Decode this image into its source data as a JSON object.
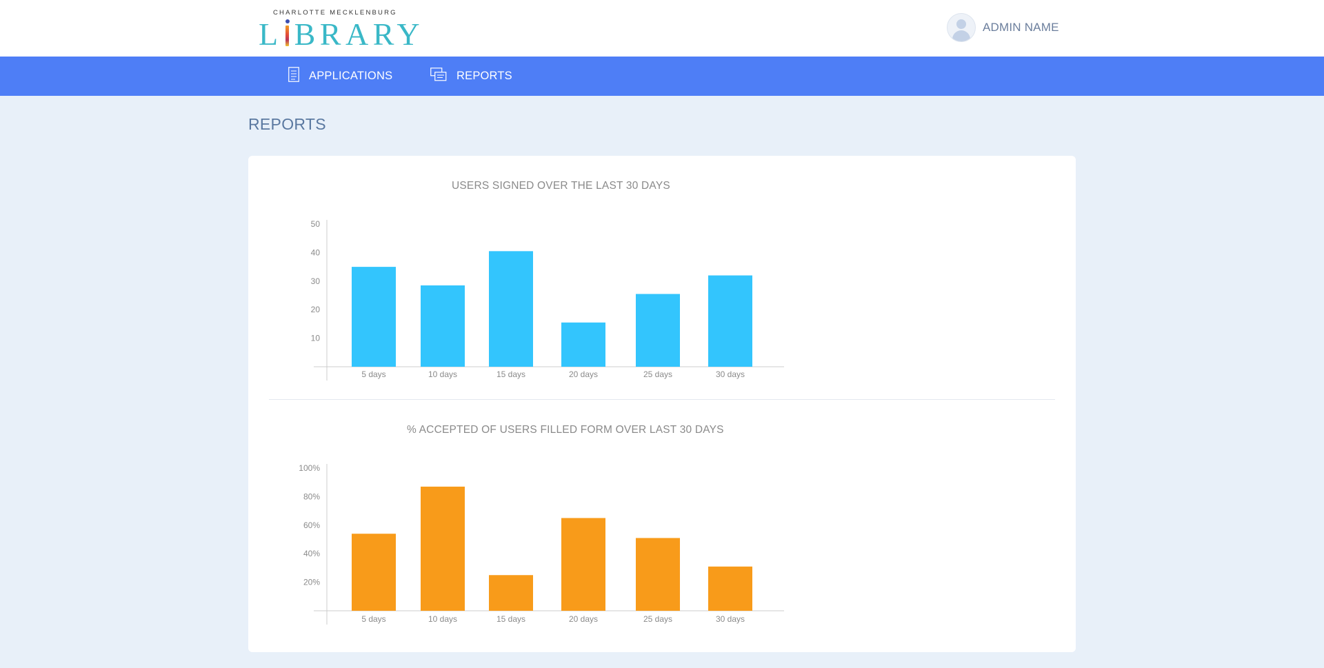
{
  "header": {
    "logo_top": "CHARLOTTE MECKLENBURG",
    "logo_main_prefix": "L",
    "logo_main_suffix": "BRARY",
    "admin_name": "ADMIN NAME"
  },
  "nav": {
    "items": [
      {
        "label": "APPLICATIONS",
        "icon": "document-icon"
      },
      {
        "label": "REPORTS",
        "icon": "reports-icon"
      }
    ]
  },
  "page": {
    "title": "REPORTS"
  },
  "colors": {
    "nav": "#4e7ef6",
    "bar_blue": "#33c5fd",
    "bar_orange": "#f89b1a",
    "title_text": "#5a78a0"
  },
  "chart_data": [
    {
      "type": "bar",
      "title": "USERS SIGNED OVER THE LAST 30 DAYS",
      "categories": [
        "5 days",
        "10 days",
        "15 days",
        "20 days",
        "25 days",
        "30 days"
      ],
      "values": [
        35,
        28.5,
        40.5,
        15.5,
        25.5,
        32
      ],
      "y_ticks": [
        "10",
        "20",
        "30",
        "40",
        "50"
      ],
      "ylim": [
        0,
        50
      ],
      "color": "#33c5fd"
    },
    {
      "type": "bar",
      "title": "% ACCEPTED OF USERS FILLED FORM OVER LAST 30 DAYS",
      "categories": [
        "5 days",
        "10 days",
        "15 days",
        "20 days",
        "25 days",
        "30 days"
      ],
      "values": [
        54,
        87,
        25,
        65,
        51,
        31
      ],
      "y_ticks": [
        "20%",
        "40%",
        "60%",
        "80%",
        "100%"
      ],
      "ylim": [
        0,
        100
      ],
      "color": "#f89b1a"
    }
  ]
}
